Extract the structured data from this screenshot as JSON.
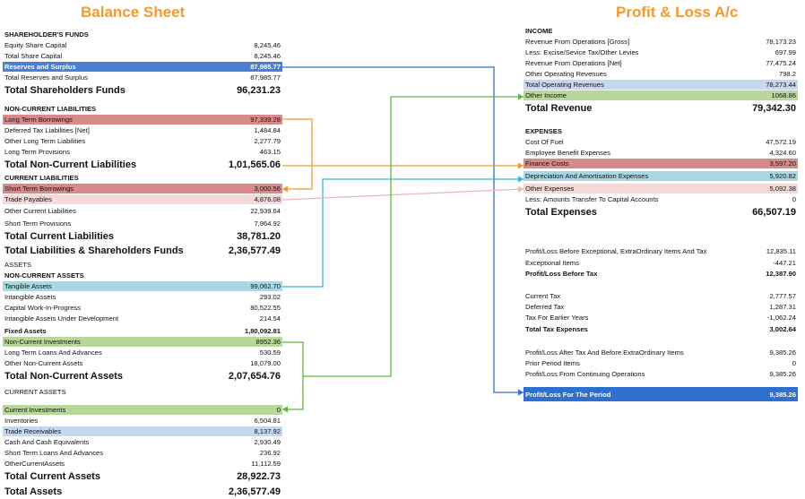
{
  "balance_sheet": {
    "title": "Balance Sheet",
    "rows": [
      {
        "label": "SHAREHOLDER'S FUNDS",
        "value": "",
        "style": "sec"
      },
      {
        "label": "Equity Share Capital",
        "value": "8,245.46",
        "style": "t"
      },
      {
        "label": "Total Share Capital",
        "value": "8,245.46",
        "style": "t"
      },
      {
        "label": "Reserves and Surplus",
        "value": "87,985.77",
        "style": "t",
        "hl": "blue"
      },
      {
        "label": "Total Reserves and Surplus",
        "value": "87,985.77",
        "style": "t"
      },
      {
        "label": "Total Shareholders Funds",
        "value": "96,231.23",
        "style": "bigtot"
      },
      {
        "label": "",
        "value": "",
        "style": "t"
      },
      {
        "label": "NON-CURRENT LIABILITIES",
        "value": "",
        "style": "sec"
      },
      {
        "label": "Long Term Borrowings",
        "value": "97,339.28",
        "style": "t",
        "hl": "red"
      },
      {
        "label": "Deferred Tax Liabilities [Net]",
        "value": "1,484.84",
        "style": "t"
      },
      {
        "label": "Other Long Term Liabilities",
        "value": "2,277.79",
        "style": "t"
      },
      {
        "label": "Long Term Provisions",
        "value": "463.15",
        "style": "t"
      },
      {
        "label": "Total Non-Current Liabilities",
        "value": "1,01,565.06",
        "style": "bigtot"
      },
      {
        "label": "CURRENT LIABILITIES",
        "value": "",
        "style": "sec"
      },
      {
        "label": "Short Term Borrowings",
        "value": "3,000.56",
        "style": "t",
        "hl": "red"
      },
      {
        "label": "Trade Payables",
        "value": "4,876.08",
        "style": "t",
        "hl": "pink"
      },
      {
        "label": "Other Current Liabilities",
        "value": "22,939.64",
        "style": "t"
      },
      {
        "label": "Short Term Provisions",
        "value": "7,964.92",
        "style": "t"
      },
      {
        "label": "Total Current Liabilities",
        "value": "38,781.20",
        "style": "bigtot"
      },
      {
        "label": "Total Liabilities & Shareholders Funds",
        "value": "2,36,577.49",
        "style": "bigtot"
      },
      {
        "label": "ASSETS",
        "value": "",
        "style": "secplain"
      },
      {
        "label": "NON-CURRENT ASSETS",
        "value": "",
        "style": "sec"
      },
      {
        "label": "Tangible Assets",
        "value": "99,062.70",
        "style": "t",
        "hl": "cyan"
      },
      {
        "label": "Intangible Assets",
        "value": "293.02",
        "style": "t"
      },
      {
        "label": "Capital Work-In-Progress",
        "value": "80,522.55",
        "style": "t"
      },
      {
        "label": "Intangible Assets Under Development",
        "value": "214.54",
        "style": "t"
      },
      {
        "label": "Fixed Assets",
        "value": "1,80,092.81",
        "style": "smtot"
      },
      {
        "label": "Non-Current Investments",
        "value": "8952.36",
        "style": "t",
        "hl": "green"
      },
      {
        "label": "Long Term Loans And Advances",
        "value": "530.59",
        "style": "t"
      },
      {
        "label": "Other Non-Current Assets",
        "value": "18,079.00",
        "style": "t"
      },
      {
        "label": "Total Non-Current Assets",
        "value": "2,07,654.76",
        "style": "bigtot"
      },
      {
        "label": "CURRENT ASSETS",
        "value": "",
        "style": "secplain"
      },
      {
        "label": "",
        "value": "",
        "style": "t"
      },
      {
        "label": "Current Investments",
        "value": "0",
        "style": "t",
        "hl": "green"
      },
      {
        "label": "Inventories",
        "value": "6,504.81",
        "style": "t"
      },
      {
        "label": "Trade Receivables",
        "value": "8,137.92",
        "style": "t",
        "hl": "lblue"
      },
      {
        "label": "Cash And Cash Equivalents",
        "value": "2,930.49",
        "style": "t"
      },
      {
        "label": "Short Term Loans And Advances",
        "value": "236.92",
        "style": "t"
      },
      {
        "label": "OtherCurrentAssets",
        "value": "11,112.59",
        "style": "t"
      },
      {
        "label": "Total Current Assets",
        "value": "28,922.73",
        "style": "bigtot"
      },
      {
        "label": "Total Assets",
        "value": "2,36,577.49",
        "style": "bigtot"
      }
    ]
  },
  "profit_loss": {
    "title": "Profit & Loss A/c",
    "rows": [
      {
        "label": "INCOME",
        "value": "",
        "style": "sec"
      },
      {
        "label": "Revenue From Operations [Gross]",
        "value": "78,173.23",
        "style": "t"
      },
      {
        "label": "Less: Excise/Sevice Tax/Other Levies",
        "value": "697.99",
        "style": "t"
      },
      {
        "label": "Revenue From Operations [Net]",
        "value": "77,475.24",
        "style": "t"
      },
      {
        "label": "Other Operating Revenues",
        "value": "798.2",
        "style": "t"
      },
      {
        "label": "Total Operating Revenues",
        "value": "78,273.44",
        "style": "t",
        "hl": "lblue"
      },
      {
        "label": "Other Income",
        "value": "1068.86",
        "style": "t",
        "hl": "green"
      },
      {
        "label": "Total Revenue",
        "value": "79,342.30",
        "style": "bigtot"
      },
      {
        "label": "",
        "value": "",
        "style": "t"
      },
      {
        "label": "EXPENSES",
        "value": "",
        "style": "sec"
      },
      {
        "label": "Cost Of Fuel",
        "value": "47,572.19",
        "style": "t"
      },
      {
        "label": "Employee Benefit Expenses",
        "value": "4,324.60",
        "style": "t"
      },
      {
        "label": "Finance Costs",
        "value": "3,597.20",
        "style": "t",
        "hl": "red"
      },
      {
        "label": "Depreciation And Amortisation Expenses",
        "value": "5,920.82",
        "style": "t",
        "hl": "cyan"
      },
      {
        "label": "Other Expenses",
        "value": "5,092.38",
        "style": "t",
        "hl": "pink"
      },
      {
        "label": "Less: Amounts Transfer To Capital Accounts",
        "value": "0",
        "style": "t"
      },
      {
        "label": "Total Expenses",
        "value": "66,507.19",
        "style": "bigtot"
      },
      {
        "label": "",
        "value": "",
        "style": "t"
      },
      {
        "label": "",
        "value": "",
        "style": "t"
      },
      {
        "label": "",
        "value": "",
        "style": "t"
      },
      {
        "label": "Profit/Loss Before Exceptional, ExtraOrdinary Items And Tax",
        "value": "12,835.11",
        "style": "t"
      },
      {
        "label": "Exceptional Items",
        "value": "-447.21",
        "style": "t"
      },
      {
        "label": "Profit/Loss Before Tax",
        "value": "12,387.90",
        "style": "smtot"
      },
      {
        "label": "",
        "value": "",
        "style": "t"
      },
      {
        "label": "Current Tax",
        "value": "2,777.57",
        "style": "t"
      },
      {
        "label": "Deferred Tax",
        "value": "1,287.31",
        "style": "t"
      },
      {
        "label": "Tax For Earlier Years",
        "value": "-1,062.24",
        "style": "t"
      },
      {
        "label": "Total Tax Expenses",
        "value": "3,002.64",
        "style": "smtot"
      },
      {
        "label": "",
        "value": "",
        "style": "t"
      },
      {
        "label": "Profit/Loss After Tax And Before ExtraOrdinary Items",
        "value": "9,385.26",
        "style": "t"
      },
      {
        "label": "Prior Period Items",
        "value": "0",
        "style": "t"
      },
      {
        "label": "Profit/Loss From Continuing Operations",
        "value": "9,385.26",
        "style": "t"
      },
      {
        "label": "",
        "value": "",
        "style": "t"
      },
      {
        "label": "Profit/Loss For The Period",
        "value": "9,385.26",
        "style": "t",
        "hl": "dblue"
      }
    ]
  },
  "colors": {
    "title": "#f39a2e",
    "blue": "#2f6fd0",
    "orange": "#f39a2e",
    "green": "#5cb83a",
    "cyan": "#3cb4d8",
    "pink": "#eab8b8"
  }
}
